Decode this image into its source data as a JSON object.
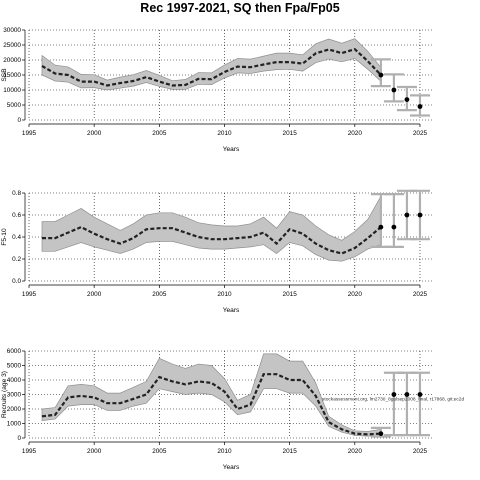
{
  "title": "Rec 1997-2021, SQ then Fpa/Fp05",
  "colors": {
    "band": "#c4c4c4",
    "band_edge": "#8f8f8f",
    "line": "#222222",
    "grid": "#000000",
    "errorbar": "#b0b0b0",
    "point": "#000000"
  },
  "chart_data": [
    {
      "type": "line",
      "title": "",
      "xlabel": "Years",
      "ylabel": "SSB",
      "xlim": [
        1995,
        2026
      ],
      "ylim": [
        0,
        30000
      ],
      "xticks": [
        1995,
        2000,
        2005,
        2010,
        2015,
        2020,
        2025
      ],
      "yticks": [
        0,
        5000,
        10000,
        15000,
        20000,
        25000,
        30000
      ],
      "grid": true,
      "x": [
        1996,
        1997,
        1998,
        1999,
        2000,
        2001,
        2002,
        2003,
        2004,
        2005,
        2006,
        2007,
        2008,
        2009,
        2010,
        2011,
        2012,
        2013,
        2014,
        2015,
        2016,
        2017,
        2018,
        2019,
        2020,
        2021,
        2022
      ],
      "median": [
        18000,
        15500,
        15000,
        12800,
        12800,
        11500,
        12300,
        13000,
        14300,
        12800,
        11500,
        11700,
        13700,
        13600,
        16000,
        17800,
        17600,
        18500,
        19300,
        19300,
        18800,
        22200,
        23500,
        22300,
        23600,
        19600,
        15000
      ],
      "lower": [
        15000,
        13000,
        12600,
        10700,
        10800,
        10000,
        10600,
        11300,
        12500,
        11200,
        10200,
        10200,
        11900,
        11800,
        14000,
        15700,
        15500,
        16300,
        16800,
        16900,
        16300,
        19100,
        20300,
        19400,
        20500,
        16900,
        12900
      ],
      "upper": [
        21500,
        18300,
        17700,
        15200,
        15100,
        13300,
        14300,
        15100,
        16500,
        14900,
        13100,
        13500,
        15800,
        15700,
        18300,
        20500,
        20300,
        21300,
        22300,
        22300,
        21700,
        25400,
        27000,
        25600,
        27100,
        22900,
        17500
      ],
      "projection": [
        {
          "year": 2022,
          "value": 15000,
          "lower": 11300,
          "upper": 20200
        },
        {
          "year": 2023,
          "value": 10000,
          "lower": 6200,
          "upper": 15200
        },
        {
          "year": 2024,
          "value": 6800,
          "lower": 3300,
          "upper": 11000
        },
        {
          "year": 2025,
          "value": 4500,
          "lower": 1500,
          "upper": 8200
        }
      ]
    },
    {
      "type": "line",
      "title": "",
      "xlabel": "Years",
      "ylabel": "F5-10",
      "xlim": [
        1995,
        2026
      ],
      "ylim": [
        0,
        0.8
      ],
      "xticks": [
        1995,
        2000,
        2005,
        2010,
        2015,
        2020,
        2025
      ],
      "yticks": [
        0.0,
        0.2,
        0.4,
        0.6,
        0.8
      ],
      "grid": true,
      "x": [
        1996,
        1997,
        1998,
        1999,
        2000,
        2001,
        2002,
        2003,
        2004,
        2005,
        2006,
        2007,
        2008,
        2009,
        2010,
        2011,
        2012,
        2013,
        2014,
        2015,
        2016,
        2017,
        2018,
        2019,
        2020,
        2021,
        2022
      ],
      "median": [
        0.39,
        0.39,
        0.44,
        0.49,
        0.43,
        0.38,
        0.34,
        0.39,
        0.47,
        0.48,
        0.48,
        0.44,
        0.4,
        0.38,
        0.38,
        0.39,
        0.4,
        0.44,
        0.34,
        0.47,
        0.43,
        0.34,
        0.28,
        0.25,
        0.3,
        0.39,
        0.49
      ],
      "lower": [
        0.27,
        0.27,
        0.31,
        0.35,
        0.31,
        0.28,
        0.25,
        0.29,
        0.35,
        0.36,
        0.36,
        0.33,
        0.3,
        0.29,
        0.29,
        0.3,
        0.31,
        0.33,
        0.25,
        0.35,
        0.32,
        0.24,
        0.19,
        0.18,
        0.22,
        0.29,
        0.33
      ],
      "upper": [
        0.54,
        0.54,
        0.6,
        0.66,
        0.58,
        0.52,
        0.46,
        0.52,
        0.6,
        0.62,
        0.62,
        0.58,
        0.53,
        0.51,
        0.5,
        0.5,
        0.52,
        0.58,
        0.48,
        0.63,
        0.6,
        0.5,
        0.42,
        0.37,
        0.45,
        0.56,
        0.77
      ],
      "projection": [
        {
          "year": 2022,
          "value": 0.49,
          "lower": 0.31,
          "upper": 0.79
        },
        {
          "year": 2023,
          "value": 0.49,
          "lower": 0.31,
          "upper": 0.79
        },
        {
          "year": 2024,
          "value": 0.6,
          "lower": 0.38,
          "upper": 0.82
        },
        {
          "year": 2025,
          "value": 0.6,
          "lower": 0.38,
          "upper": 0.82
        }
      ]
    },
    {
      "type": "line",
      "title": "",
      "xlabel": "Years",
      "ylabel": "Recruits (age 3)",
      "xlim": [
        1995,
        2026
      ],
      "ylim": [
        0,
        6000
      ],
      "xticks": [
        1995,
        2000,
        2005,
        2010,
        2015,
        2020,
        2025
      ],
      "yticks": [
        0,
        1000,
        2000,
        3000,
        4000,
        5000,
        6000
      ],
      "grid": true,
      "x": [
        1996,
        1997,
        1998,
        1999,
        2000,
        2001,
        2002,
        2003,
        2004,
        2005,
        2006,
        2007,
        2008,
        2009,
        2010,
        2011,
        2012,
        2013,
        2014,
        2015,
        2016,
        2017,
        2018,
        2019,
        2020,
        2021,
        2022
      ],
      "median": [
        1500,
        1600,
        2800,
        2900,
        2800,
        2400,
        2400,
        2700,
        3000,
        4200,
        3900,
        3700,
        3900,
        3800,
        3200,
        2000,
        2300,
        4400,
        4400,
        4000,
        4000,
        2900,
        1100,
        600,
        300,
        250,
        300
      ],
      "lower": [
        1200,
        1300,
        2200,
        2300,
        2300,
        1900,
        1900,
        2200,
        2400,
        3400,
        3200,
        3000,
        3100,
        3000,
        2500,
        1600,
        1800,
        3400,
        3400,
        3100,
        3100,
        2200,
        800,
        400,
        180,
        130,
        150
      ],
      "upper": [
        2000,
        2100,
        3600,
        3700,
        3600,
        3100,
        3100,
        3500,
        3900,
        5500,
        5100,
        4800,
        5100,
        5000,
        4100,
        2600,
        3000,
        5800,
        5800,
        5300,
        5300,
        3800,
        1500,
        900,
        500,
        450,
        600
      ],
      "projection": [
        {
          "year": 2022,
          "value": 300,
          "lower": 100,
          "upper": 700
        },
        {
          "year": 2023,
          "value": 3000,
          "lower": 200,
          "upper": 4500
        },
        {
          "year": 2024,
          "value": 3000,
          "lower": 200,
          "upper": 4500
        },
        {
          "year": 2025,
          "value": 3000,
          "lower": 200,
          "upper": 4500
        }
      ],
      "annotation": "stockassessment.org, lm2730_8gulsep2008_final, r17868, git:ec2d"
    }
  ]
}
